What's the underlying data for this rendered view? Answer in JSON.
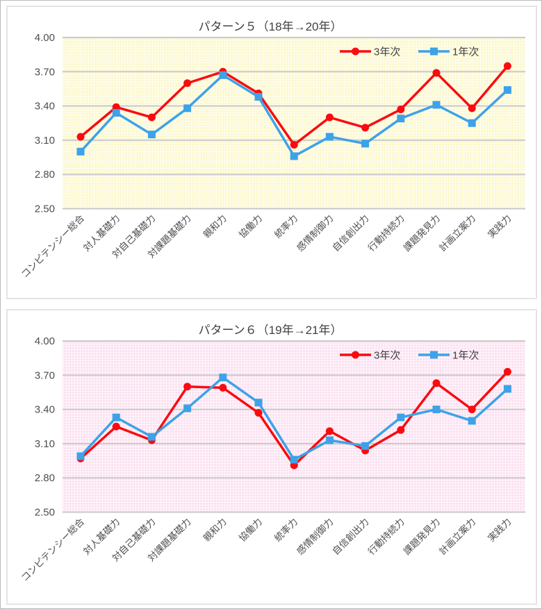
{
  "page": {
    "background": "#ffffff",
    "panel_border_color": "#e4e4e4"
  },
  "chart_data": [
    {
      "type": "line",
      "title": "パターン５（18年→20年）",
      "plot_background": "#fcf8cd",
      "pattern_line_color": "rgba(255,255,255,0.75)",
      "gridline_color": "#c9c9c9",
      "grid": true,
      "legend_position": "top-right",
      "ylim": [
        2.5,
        4.0
      ],
      "y_axis": {
        "values": [
          4.0,
          3.7,
          3.4,
          3.1,
          2.8,
          2.5
        ],
        "tick_labels": [
          "4.00",
          "3.70",
          "3.40",
          "3.10",
          "2.80",
          "2.50"
        ]
      },
      "categories": [
        "コンピテンシー総合",
        "対人基礎力",
        "対自己基礎力",
        "対課題基礎力",
        "親和力",
        "協働力",
        "統率力",
        "感情制御力",
        "自信創出力",
        "行動持続力",
        "課題発見力",
        "計画立案力",
        "実践力"
      ],
      "series": [
        {
          "name": "3年次",
          "color": "#fb0a10",
          "marker": "circle",
          "values": [
            3.13,
            3.39,
            3.3,
            3.6,
            3.7,
            3.51,
            3.06,
            3.3,
            3.21,
            3.37,
            3.69,
            3.38,
            3.75
          ]
        },
        {
          "name": "1年次",
          "color": "#3da2e8",
          "marker": "square",
          "values": [
            3.0,
            3.34,
            3.15,
            3.38,
            3.67,
            3.48,
            2.96,
            3.13,
            3.07,
            3.29,
            3.41,
            3.25,
            3.54
          ]
        }
      ]
    },
    {
      "type": "line",
      "title": "パターン６（19年→21年）",
      "plot_background": "#fbe1f1",
      "pattern_line_color": "rgba(255,255,255,0.75)",
      "gridline_color": "#c9c9c9",
      "grid": true,
      "legend_position": "top-right",
      "ylim": [
        2.5,
        4.0
      ],
      "y_axis": {
        "values": [
          4.0,
          3.7,
          3.4,
          3.1,
          2.8,
          2.5
        ],
        "tick_labels": [
          "4.00",
          "3.70",
          "3.40",
          "3.10",
          "2.80",
          "2.50"
        ]
      },
      "categories": [
        "コンピテンシー総合",
        "対人基礎力",
        "対自己基礎力",
        "対課題基礎力",
        "親和力",
        "協働力",
        "統率力",
        "感情制御力",
        "自信創出力",
        "行動持続力",
        "課題発見力",
        "計画立案力",
        "実践力"
      ],
      "series": [
        {
          "name": "3年次",
          "color": "#fb0a10",
          "marker": "circle",
          "values": [
            2.97,
            3.25,
            3.13,
            3.6,
            3.59,
            3.37,
            2.91,
            3.21,
            3.04,
            3.22,
            3.63,
            3.4,
            3.73
          ]
        },
        {
          "name": "1年次",
          "color": "#3da2e8",
          "marker": "square",
          "values": [
            2.99,
            3.33,
            3.16,
            3.41,
            3.68,
            3.46,
            2.96,
            3.13,
            3.08,
            3.33,
            3.4,
            3.3,
            3.58
          ]
        }
      ]
    }
  ]
}
